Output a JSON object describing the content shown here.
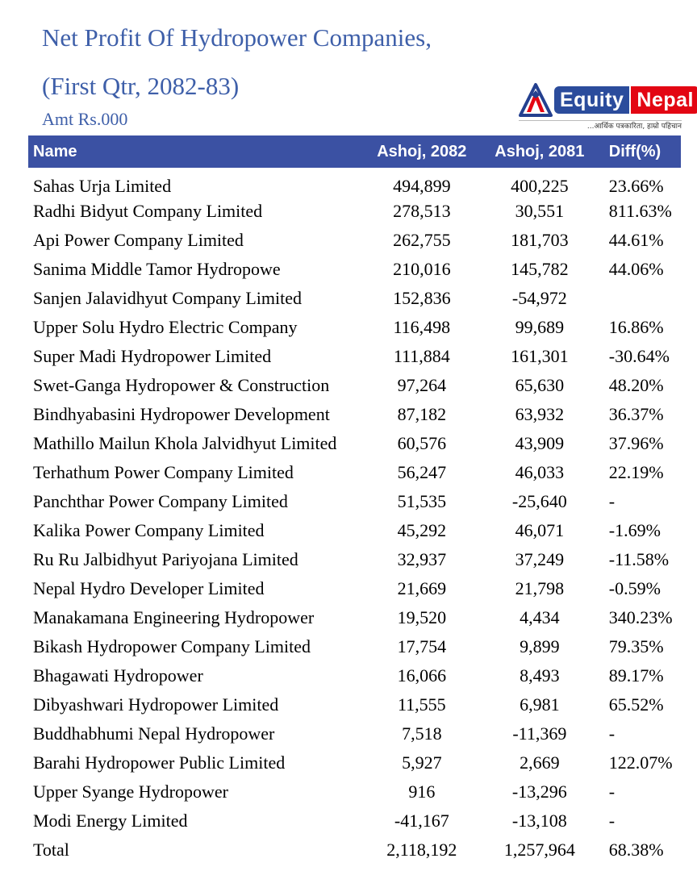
{
  "header": {
    "title_line1": "Net Profit Of Hydropower Companies,",
    "title_line2": "(First Qtr, 2082-83)",
    "subtitle": "Amt Rs.000"
  },
  "logo": {
    "word1": "Equity",
    "word2": "Nepal",
    "tagline": "...आर्थिक पत्रकारिता, हाम्रो पहिचान",
    "blue": "#2B4C9C",
    "red": "#E30613"
  },
  "colors": {
    "table_header_bg": "#3B51A3",
    "table_header_text": "#FFFFFF",
    "title_text": "#3E5FA9",
    "body_text": "#000000"
  },
  "chart_data": {
    "type": "table",
    "title": "Net Profit Of Hydropower Companies, (First Qtr, 2082-83)",
    "unit": "Amt Rs.000",
    "columns": [
      "Name",
      "Ashoj, 2082",
      "Ashoj, 2081",
      "Diff(%)"
    ],
    "column_keys": [
      "name",
      "ashoj-2082",
      "ashoj-2081",
      "diff-pct"
    ],
    "rows": [
      [
        "Sahas Urja Limited",
        "494,899",
        "400,225",
        "23.66%"
      ],
      [
        "Radhi Bidyut Company Limited",
        "278,513",
        "30,551",
        "811.63%"
      ],
      [
        "Api Power Company Limited",
        "262,755",
        "181,703",
        "44.61%"
      ],
      [
        "Sanima Middle Tamor Hydropowe",
        "210,016",
        "145,782",
        "44.06%"
      ],
      [
        "Sanjen Jalavidhyut Company Limited",
        "152,836",
        "-54,972",
        ""
      ],
      [
        "Upper Solu Hydro Electric Company",
        "116,498",
        "99,689",
        "16.86%"
      ],
      [
        "Super Madi Hydropower Limited",
        "111,884",
        "161,301",
        "-30.64%"
      ],
      [
        "Swet-Ganga Hydropower & Construction",
        "97,264",
        "65,630",
        "48.20%"
      ],
      [
        "Bindhyabasini Hydropower Development",
        "87,182",
        "63,932",
        "36.37%"
      ],
      [
        "Mathillo Mailun Khola Jalvidhyut Limited",
        "60,576",
        "43,909",
        "37.96%"
      ],
      [
        "Terhathum Power Company Limited",
        "56,247",
        "46,033",
        "22.19%"
      ],
      [
        "Panchthar Power Company Limited",
        "51,535",
        "-25,640",
        "-"
      ],
      [
        "Kalika Power Company Limited",
        "45,292",
        "46,071",
        "-1.69%"
      ],
      [
        "Ru Ru Jalbidhyut Pariyojana Limited",
        "32,937",
        "37,249",
        "-11.58%"
      ],
      [
        "Nepal Hydro Developer Limited",
        "21,669",
        "21,798",
        "-0.59%"
      ],
      [
        "Manakamana Engineering Hydropower",
        "19,520",
        "4,434",
        "340.23%"
      ],
      [
        "Bikash Hydropower Company Limited",
        "17,754",
        "9,899",
        "79.35%"
      ],
      [
        "Bhagawati Hydropower",
        "16,066",
        "8,493",
        "89.17%"
      ],
      [
        "Dibyashwari Hydropower Limited",
        "11,555",
        "6,981",
        "65.52%"
      ],
      [
        "Buddhabhumi Nepal Hydropower",
        "7,518",
        "-11,369",
        "-"
      ],
      [
        "Barahi Hydropower Public Limited",
        "5,927",
        "2,669",
        "122.07%"
      ],
      [
        "Upper Syange Hydropower",
        "916",
        "-13,296",
        "-"
      ],
      [
        "Modi Energy Limited",
        "-41,167",
        "-13,108",
        "-"
      ],
      [
        "Total",
        "2,118,192",
        "1,257,964",
        "68.38%"
      ]
    ]
  }
}
